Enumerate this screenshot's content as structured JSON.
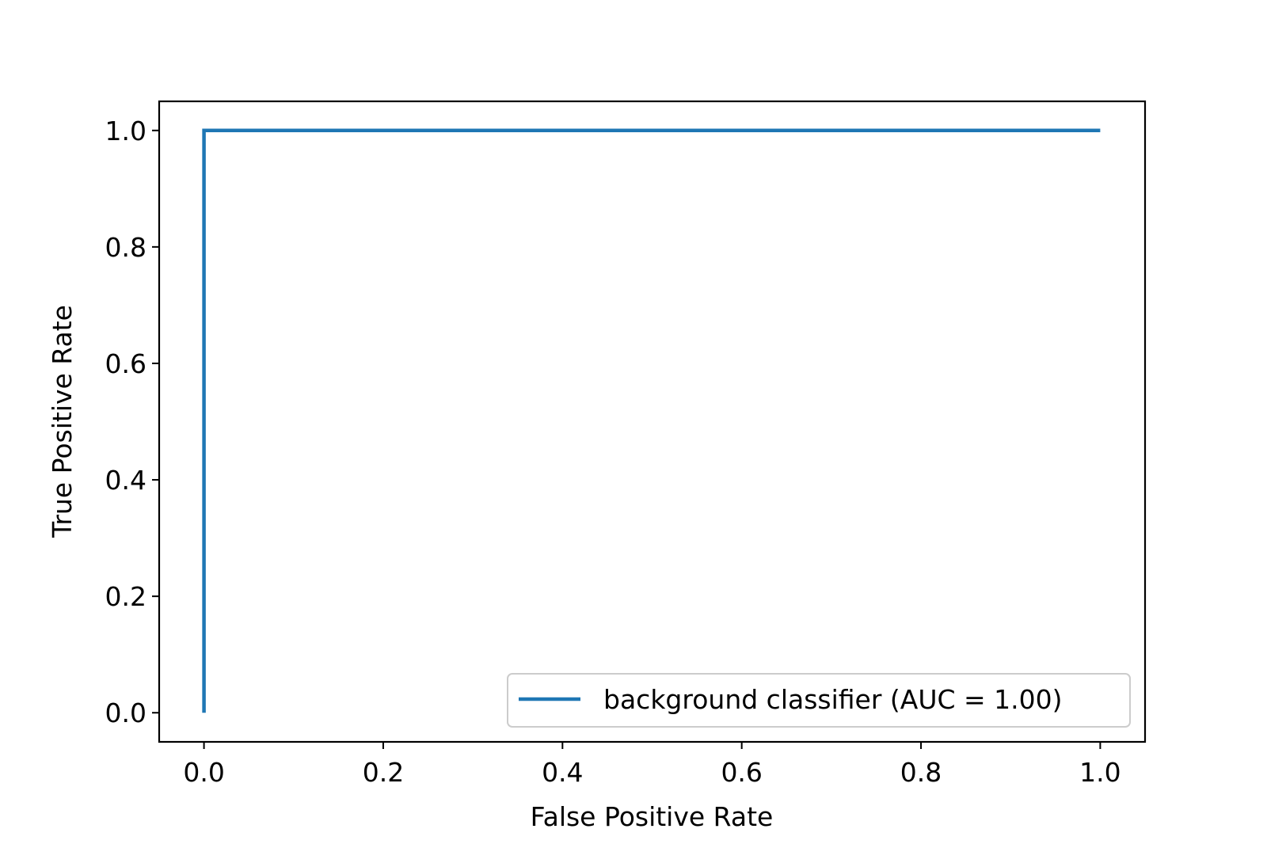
{
  "chart_data": {
    "type": "line",
    "title": "",
    "xlabel": "False Positive Rate",
    "ylabel": "True Positive Rate",
    "xlim": [
      -0.05,
      1.05
    ],
    "ylim": [
      -0.05,
      1.05
    ],
    "xticks": [
      0.0,
      0.2,
      0.4,
      0.6,
      0.8,
      1.0
    ],
    "yticks": [
      0.0,
      0.2,
      0.4,
      0.6,
      0.8,
      1.0
    ],
    "xtick_labels": [
      "0.0",
      "0.2",
      "0.4",
      "0.6",
      "0.8",
      "1.0"
    ],
    "ytick_labels": [
      "0.0",
      "0.2",
      "0.4",
      "0.6",
      "0.8",
      "1.0"
    ],
    "grid": false,
    "legend_position": "lower-right",
    "series": [
      {
        "name": "background classifier (AUC = 1.00)",
        "color": "#1f77b4",
        "x": [
          0.0,
          0.0,
          1.0
        ],
        "y": [
          0.0,
          1.0,
          1.0
        ]
      }
    ]
  }
}
